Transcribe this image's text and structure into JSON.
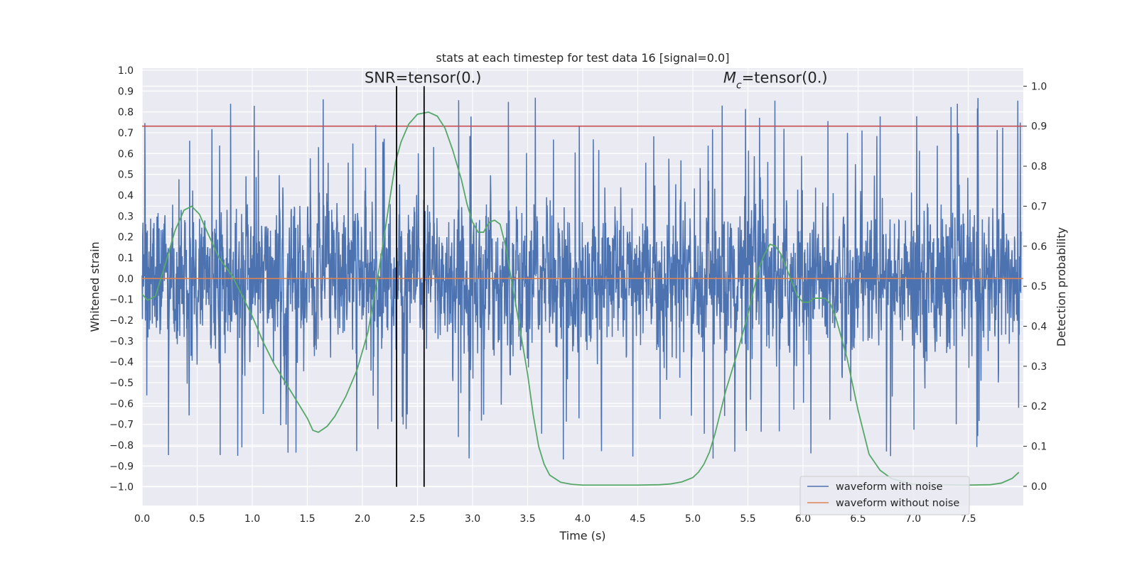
{
  "chart_data": {
    "type": "line",
    "title": "stats at each timestep for test data 16 [signal=0.0]",
    "xlabel": "Time (s)",
    "ylabel_left": "Whitened strain",
    "ylabel_right": "Detection probability",
    "xlim": [
      0.0,
      8.0
    ],
    "ylim_left": [
      -1.09,
      1.01
    ],
    "ylim_right": [
      -0.048,
      1.045
    ],
    "x_ticks": [
      "0.0",
      "0.5",
      "1.0",
      "1.5",
      "2.0",
      "2.5",
      "3.0",
      "3.5",
      "4.0",
      "4.5",
      "5.0",
      "5.5",
      "6.0",
      "6.5",
      "7.0",
      "7.5"
    ],
    "y_left_ticks": [
      "1.0",
      "0.9",
      "0.8",
      "0.7",
      "0.6",
      "0.5",
      "0.4",
      "0.3",
      "0.2",
      "0.1",
      "0.0",
      "−0.1",
      "−0.2",
      "−0.3",
      "−0.4",
      "−0.5",
      "−0.6",
      "−0.7",
      "−0.8",
      "−0.9",
      "−1.0"
    ],
    "y_right_ticks": [
      "0.0",
      "0.1",
      "0.2",
      "0.3",
      "0.4",
      "0.5",
      "0.6",
      "0.7",
      "0.8",
      "0.9",
      "1.0"
    ],
    "grid": true,
    "legend_position": "lower-right",
    "annotations": [
      {
        "text": "SNR=tensor(0.)",
        "x": 2.55,
        "y": 0.94
      },
      {
        "text_main": "M",
        "text_sub": "c",
        "text_rest": "=tensor(0.)",
        "x": 5.75,
        "y": 0.94
      }
    ],
    "series": [
      {
        "name": "waveform with noise",
        "axis": "left",
        "color": "#4c72b0",
        "envelope_description": "dense noisy waveform, peaks roughly within ±0.9",
        "noise_seed": 16,
        "points": 3200
      },
      {
        "name": "waveform without noise",
        "axis": "left",
        "color": "#dd8452",
        "values_constant": 0.0
      },
      {
        "axis": "right",
        "color": "#55a868",
        "x": [
          0.0,
          0.05,
          0.12,
          0.2,
          0.3,
          0.38,
          0.45,
          0.52,
          0.6,
          0.7,
          0.82,
          0.92,
          1.0,
          1.1,
          1.2,
          1.3,
          1.4,
          1.5,
          1.55,
          1.6,
          1.68,
          1.75,
          1.85,
          1.95,
          2.05,
          2.15,
          2.25,
          2.3,
          2.35,
          2.42,
          2.5,
          2.6,
          2.68,
          2.75,
          2.82,
          2.9,
          2.95,
          3.0,
          3.05,
          3.1,
          3.15,
          3.2,
          3.25,
          3.3,
          3.35,
          3.42,
          3.5,
          3.55,
          3.6,
          3.65,
          3.7,
          3.8,
          3.9,
          4.0,
          4.2,
          4.5,
          4.7,
          4.8,
          4.9,
          5.0,
          5.05,
          5.1,
          5.15,
          5.2,
          5.3,
          5.4,
          5.5,
          5.6,
          5.65,
          5.7,
          5.75,
          5.8,
          5.85,
          5.9,
          5.95,
          6.0,
          6.05,
          6.1,
          6.15,
          6.2,
          6.25,
          6.3,
          6.35,
          6.4,
          6.5,
          6.6,
          6.7,
          6.8,
          6.9,
          7.0,
          7.5,
          7.7,
          7.8,
          7.9,
          7.96
        ],
        "y": [
          0.48,
          0.465,
          0.475,
          0.545,
          0.64,
          0.69,
          0.7,
          0.68,
          0.63,
          0.57,
          0.525,
          0.47,
          0.425,
          0.36,
          0.305,
          0.26,
          0.215,
          0.17,
          0.14,
          0.135,
          0.15,
          0.175,
          0.225,
          0.29,
          0.385,
          0.54,
          0.72,
          0.81,
          0.86,
          0.905,
          0.93,
          0.935,
          0.925,
          0.895,
          0.84,
          0.765,
          0.705,
          0.66,
          0.635,
          0.635,
          0.66,
          0.665,
          0.655,
          0.6,
          0.52,
          0.41,
          0.28,
          0.18,
          0.1,
          0.055,
          0.028,
          0.01,
          0.005,
          0.003,
          0.003,
          0.003,
          0.004,
          0.006,
          0.011,
          0.022,
          0.035,
          0.055,
          0.085,
          0.13,
          0.24,
          0.33,
          0.43,
          0.545,
          0.58,
          0.605,
          0.6,
          0.58,
          0.545,
          0.51,
          0.475,
          0.46,
          0.46,
          0.47,
          0.47,
          0.47,
          0.455,
          0.42,
          0.37,
          0.32,
          0.19,
          0.08,
          0.04,
          0.02,
          0.012,
          0.005,
          0.003,
          0.004,
          0.008,
          0.02,
          0.035
        ]
      }
    ],
    "threshold_line": {
      "axis": "right",
      "value": 0.9,
      "color": "#c44e52"
    },
    "vertical_lines": [
      {
        "x": 2.31,
        "color": "#000000"
      },
      {
        "x": 2.56,
        "color": "#000000"
      }
    ]
  }
}
